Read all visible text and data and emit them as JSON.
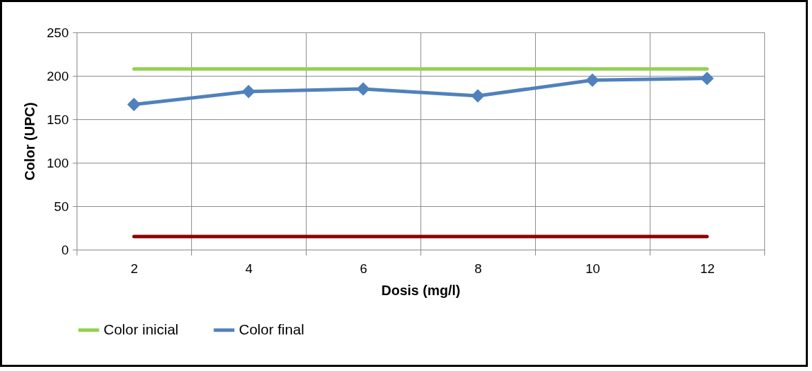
{
  "chart_data": {
    "type": "line",
    "xlabel": "Dosis  (mg/l)",
    "ylabel": "Color (UPC)",
    "categories": [
      "2",
      "4",
      "6",
      "8",
      "10",
      "12"
    ],
    "series": [
      {
        "name": "Color inicial",
        "color": "#92d050",
        "values": [
          208,
          208,
          208,
          208,
          208,
          208
        ],
        "marker": "none"
      },
      {
        "name": "Color final",
        "color": "#4f81bd",
        "values": [
          167,
          182,
          185,
          177,
          195,
          197
        ],
        "marker": "diamond"
      },
      {
        "color": "#8b0000",
        "values": [
          15,
          15,
          15,
          15,
          15,
          15
        ],
        "marker": "none"
      }
    ],
    "ylim": [
      0,
      250
    ],
    "yticks": [
      0,
      50,
      100,
      150,
      200,
      250
    ],
    "grid": true,
    "legend": "bottom",
    "line_style": "solid"
  }
}
